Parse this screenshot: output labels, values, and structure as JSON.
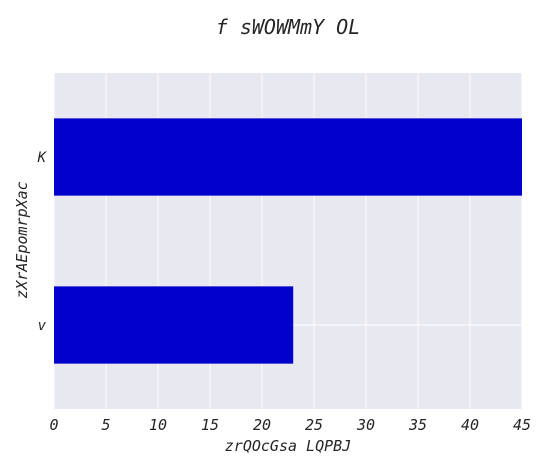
{
  "chart_data": {
    "type": "bar",
    "orientation": "horizontal",
    "title": "f  sWOWMmY OL",
    "xlabel": "zrQOcGsa LQPBJ",
    "ylabel": "zXrAEpomrpXac",
    "categories": [
      "K",
      "v"
    ],
    "values": [
      45,
      23
    ],
    "xlim": [
      0,
      45
    ],
    "xticks": [
      0,
      5,
      10,
      15,
      20,
      25,
      30,
      35,
      40,
      45
    ],
    "grid": true,
    "colors": {
      "bar": "#0000cc",
      "plot_background": "#e8e8f1",
      "grid": "#ffffff"
    }
  }
}
